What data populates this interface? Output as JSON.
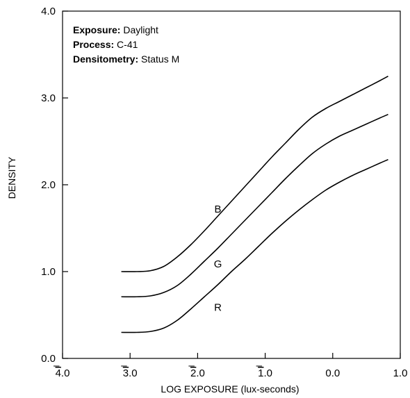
{
  "chart_data": {
    "type": "line",
    "xlabel": "LOG EXPOSURE (lux-seconds)",
    "ylabel": "DENSITY",
    "x_ticks": [
      {
        "bar": "4",
        "rest": ".0"
      },
      {
        "bar": "3",
        "rest": ".0"
      },
      {
        "bar": "2",
        "rest": ".0"
      },
      {
        "bar": "1",
        "rest": ".0"
      },
      {
        "bar": "",
        "rest": "0.0"
      },
      {
        "bar": "",
        "rest": "1.0"
      }
    ],
    "y_ticks": [
      "0.0",
      "1.0",
      "2.0",
      "3.0",
      "4.0"
    ],
    "xlim": [
      -4.0,
      1.0
    ],
    "ylim": [
      0.0,
      4.0
    ],
    "grid": false,
    "info": [
      {
        "key": "Exposure:",
        "value": "Daylight"
      },
      {
        "key": "Process:",
        "value": "C-41"
      },
      {
        "key": "Densitometry:",
        "value": "Status M"
      }
    ],
    "series": [
      {
        "name": "B",
        "color": "#000000",
        "label_pos": [
          -1.7,
          1.68
        ],
        "points": [
          [
            -3.13,
            1.0
          ],
          [
            -2.9,
            1.0
          ],
          [
            -2.7,
            1.01
          ],
          [
            -2.5,
            1.06
          ],
          [
            -2.3,
            1.17
          ],
          [
            -2.1,
            1.31
          ],
          [
            -1.9,
            1.47
          ],
          [
            -1.7,
            1.64
          ],
          [
            -1.5,
            1.81
          ],
          [
            -1.3,
            1.98
          ],
          [
            -1.1,
            2.15
          ],
          [
            -0.9,
            2.32
          ],
          [
            -0.7,
            2.48
          ],
          [
            -0.5,
            2.64
          ],
          [
            -0.3,
            2.78
          ],
          [
            -0.1,
            2.88
          ],
          [
            0.1,
            2.96
          ],
          [
            0.3,
            3.04
          ],
          [
            0.5,
            3.12
          ],
          [
            0.7,
            3.2
          ],
          [
            0.82,
            3.25
          ]
        ]
      },
      {
        "name": "G",
        "color": "#000000",
        "label_pos": [
          -1.7,
          1.05
        ],
        "points": [
          [
            -3.13,
            0.71
          ],
          [
            -2.9,
            0.71
          ],
          [
            -2.7,
            0.72
          ],
          [
            -2.5,
            0.76
          ],
          [
            -2.3,
            0.84
          ],
          [
            -2.1,
            0.97
          ],
          [
            -1.9,
            1.12
          ],
          [
            -1.7,
            1.27
          ],
          [
            -1.5,
            1.43
          ],
          [
            -1.3,
            1.59
          ],
          [
            -1.1,
            1.75
          ],
          [
            -0.9,
            1.91
          ],
          [
            -0.7,
            2.07
          ],
          [
            -0.5,
            2.22
          ],
          [
            -0.3,
            2.36
          ],
          [
            -0.1,
            2.47
          ],
          [
            0.1,
            2.56
          ],
          [
            0.3,
            2.63
          ],
          [
            0.5,
            2.7
          ],
          [
            0.7,
            2.77
          ],
          [
            0.82,
            2.81
          ]
        ]
      },
      {
        "name": "R",
        "color": "#000000",
        "label_pos": [
          -1.7,
          0.55
        ],
        "points": [
          [
            -3.13,
            0.3
          ],
          [
            -2.9,
            0.3
          ],
          [
            -2.7,
            0.31
          ],
          [
            -2.5,
            0.35
          ],
          [
            -2.3,
            0.44
          ],
          [
            -2.1,
            0.57
          ],
          [
            -1.9,
            0.71
          ],
          [
            -1.7,
            0.85
          ],
          [
            -1.5,
            1.0
          ],
          [
            -1.3,
            1.14
          ],
          [
            -1.1,
            1.29
          ],
          [
            -0.9,
            1.44
          ],
          [
            -0.7,
            1.58
          ],
          [
            -0.5,
            1.71
          ],
          [
            -0.3,
            1.83
          ],
          [
            -0.1,
            1.94
          ],
          [
            0.1,
            2.03
          ],
          [
            0.3,
            2.11
          ],
          [
            0.5,
            2.18
          ],
          [
            0.7,
            2.25
          ],
          [
            0.82,
            2.29
          ]
        ]
      }
    ]
  }
}
